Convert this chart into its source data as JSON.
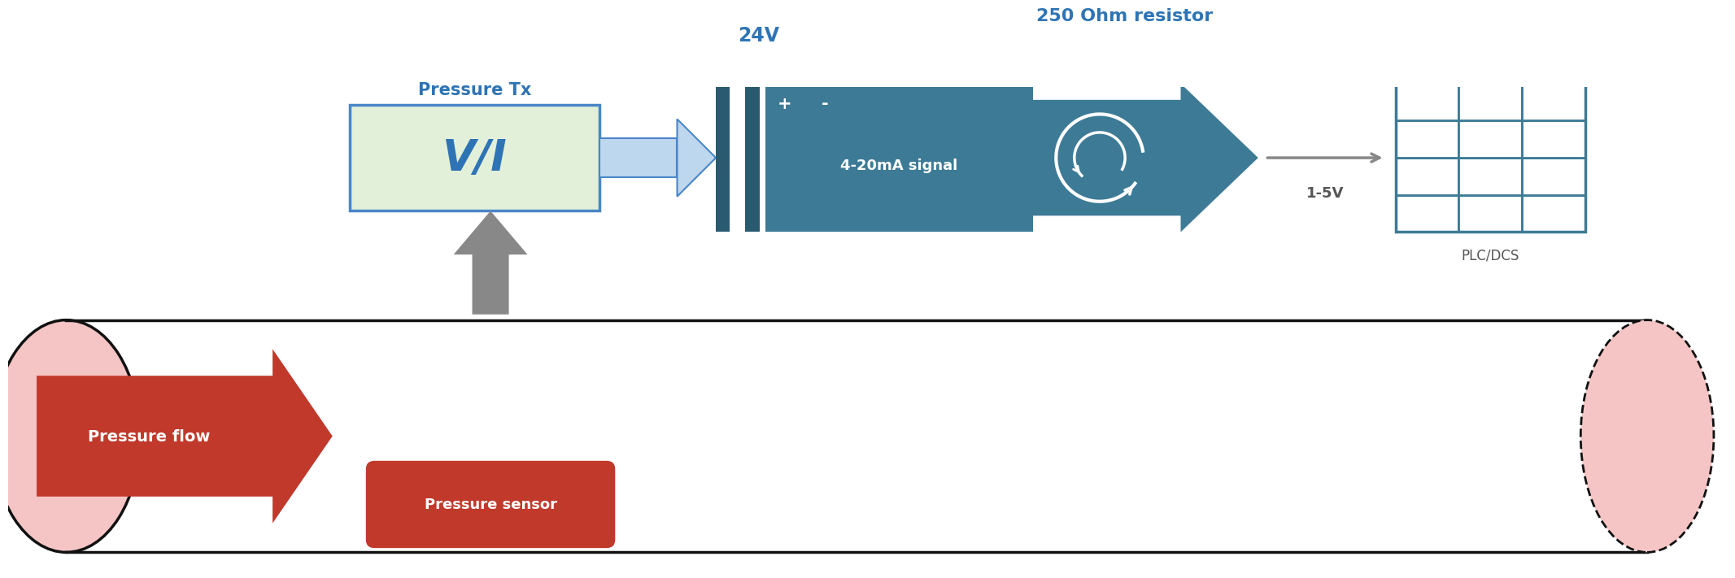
{
  "fig_width": 24.41,
  "fig_height": 6.86,
  "bg_color": "#ffffff",
  "pipe_fill": "#f5c5c5",
  "pipe_stroke": "#111111",
  "vi_fill": "#e2f0d9",
  "vi_border": "#4a86c8",
  "vi_text": "V/I",
  "vi_label": "Pressure Tx",
  "vi_label_color": "#2e74b5",
  "sig_fill": "#3d7a96",
  "sig_bar_fill": "#2a5a70",
  "sig_text": "4-20mA signal",
  "sig_label_24v": "24V",
  "resistor_label": "250 Ohm resistor",
  "voltage_label": "1-5V",
  "plc_label": "PLC/DCS",
  "plc_fill": "#3d7a96",
  "flow_fill": "#c0392b",
  "flow_text": "Pressure flow",
  "sensor_fill": "#c0392b",
  "sensor_text": "Pressure sensor",
  "gray": "#888888",
  "light_blue_arrow": "#5b9bd5",
  "light_blue_fill": "#bdd7ee"
}
